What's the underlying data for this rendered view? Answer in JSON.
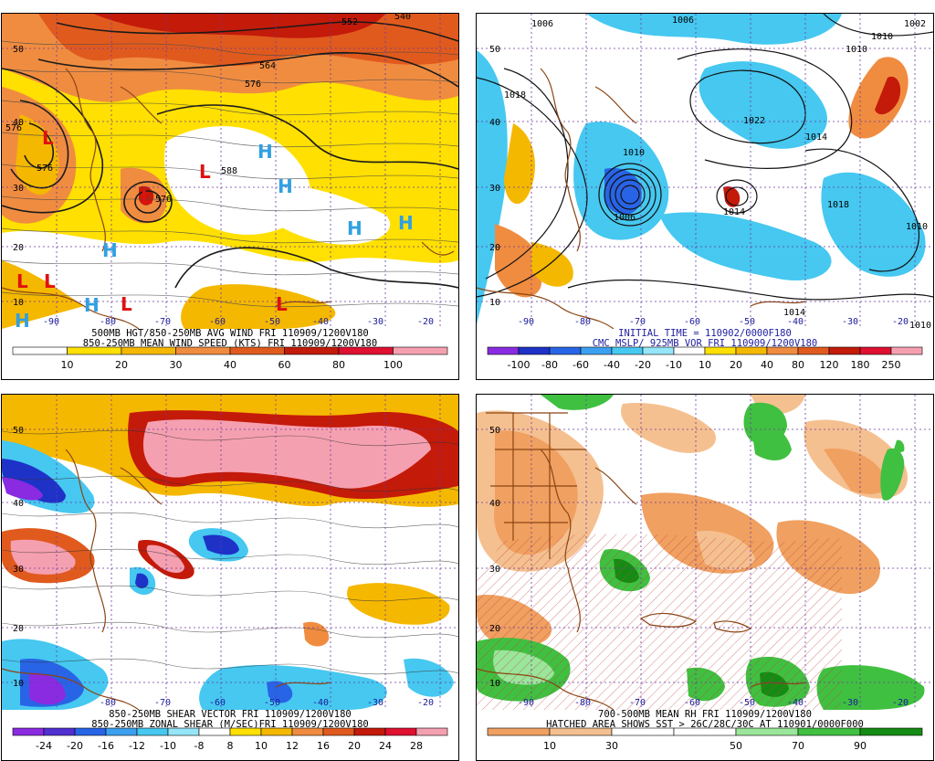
{
  "panels": {
    "p1": {
      "title_1": "500MB HGT/850-250MB AVG WIND FRI 110909/1200V180",
      "title_2": "850-250MB MEAN WIND SPEED (KTS) FRI 110909/1200V180",
      "colorbar_labels": [
        "10",
        "20",
        "30",
        "40",
        "60",
        "80",
        "100"
      ],
      "colorbar_colors": [
        "#ffffff",
        "#ffe000",
        "#f5b800",
        "#f08c40",
        "#e05a1e",
        "#c41a0a",
        "#e01030",
        "#f5a0b0"
      ],
      "lat_labels": [
        "50",
        "40",
        "30",
        "20",
        "10"
      ],
      "lon_labels": [
        "-90",
        "-80",
        "-70",
        "-60",
        "-50",
        "-40",
        "-30",
        "-20"
      ],
      "contour_labels": [
        "552",
        "540",
        "564",
        "576",
        "576",
        "576",
        "588",
        "576"
      ],
      "high_symbol": "H",
      "low_symbol": "L"
    },
    "p2": {
      "title_1": "INITIAL TIME = 110902/0000F180",
      "title_2": "CMC MSLP/ 925MB VOR FRI 110909/1200V180",
      "colorbar_labels": [
        "-100",
        "-80",
        "-60",
        "-40",
        "-20",
        "-10",
        "10",
        "20",
        "40",
        "80",
        "120",
        "180",
        "250"
      ],
      "colorbar_colors": [
        "#8a2be2",
        "#1e32c8",
        "#2864e6",
        "#3ca0f0",
        "#46c8f0",
        "#96e6fa",
        "#ffffff",
        "#ffe000",
        "#f5b800",
        "#f08c40",
        "#e05a1e",
        "#c41a0a",
        "#e01030",
        "#f5a0b0"
      ],
      "lat_labels": [
        "50",
        "40",
        "30",
        "20",
        "10"
      ],
      "lon_labels": [
        "-90",
        "-80",
        "-70",
        "-60",
        "-50",
        "-40",
        "-30",
        "-20"
      ],
      "contour_labels": [
        "1006",
        "1002",
        "1010",
        "1010",
        "1022",
        "1018",
        "1014",
        "1010",
        "1014",
        "1018",
        "1006",
        "1014",
        "1010",
        "1010",
        "1006"
      ]
    },
    "p3": {
      "title_1": "850-250MB SHEAR VECTOR FRI 110909/1200V180",
      "title_2": "850-250MB ZONAL SHEAR (M/SEC)FRI 110909/1200V180",
      "colorbar_labels": [
        "-24",
        "-20",
        "-16",
        "-12",
        "-10",
        "-8",
        "8",
        "10",
        "12",
        "16",
        "20",
        "24",
        "28"
      ],
      "colorbar_colors": [
        "#8a2be2",
        "#5030d0",
        "#2864e6",
        "#3ca0f0",
        "#46c8f0",
        "#96e6fa",
        "#ffffff",
        "#ffe000",
        "#f5b800",
        "#f08c40",
        "#e05a1e",
        "#c41a0a",
        "#e01030",
        "#f5a0b0"
      ],
      "lat_labels": [
        "50",
        "40",
        "30",
        "20",
        "10"
      ],
      "lon_labels": [
        "-80",
        "-70",
        "-60",
        "-50",
        "-40",
        "-30",
        "-20"
      ]
    },
    "p4": {
      "title_1": "700-500MB MEAN RH FRI 110909/1200V180",
      "title_2": "HATCHED AREA SHOWS SST > 26C/28C/30C AT 110901/0000F000",
      "colorbar_labels": [
        "10",
        "30",
        "50",
        "70",
        "90"
      ],
      "colorbar_colors": [
        "#f0a060",
        "#f5c090",
        "#ffffff",
        "#ffffff",
        "#9ae69a",
        "#40c040",
        "#148c14"
      ],
      "lat_labels": [
        "50",
        "40",
        "30",
        "20",
        "10"
      ],
      "lon_labels": [
        "-90",
        "-80",
        "-70",
        "-60",
        "-50",
        "-40",
        "-30",
        "-20"
      ]
    }
  }
}
